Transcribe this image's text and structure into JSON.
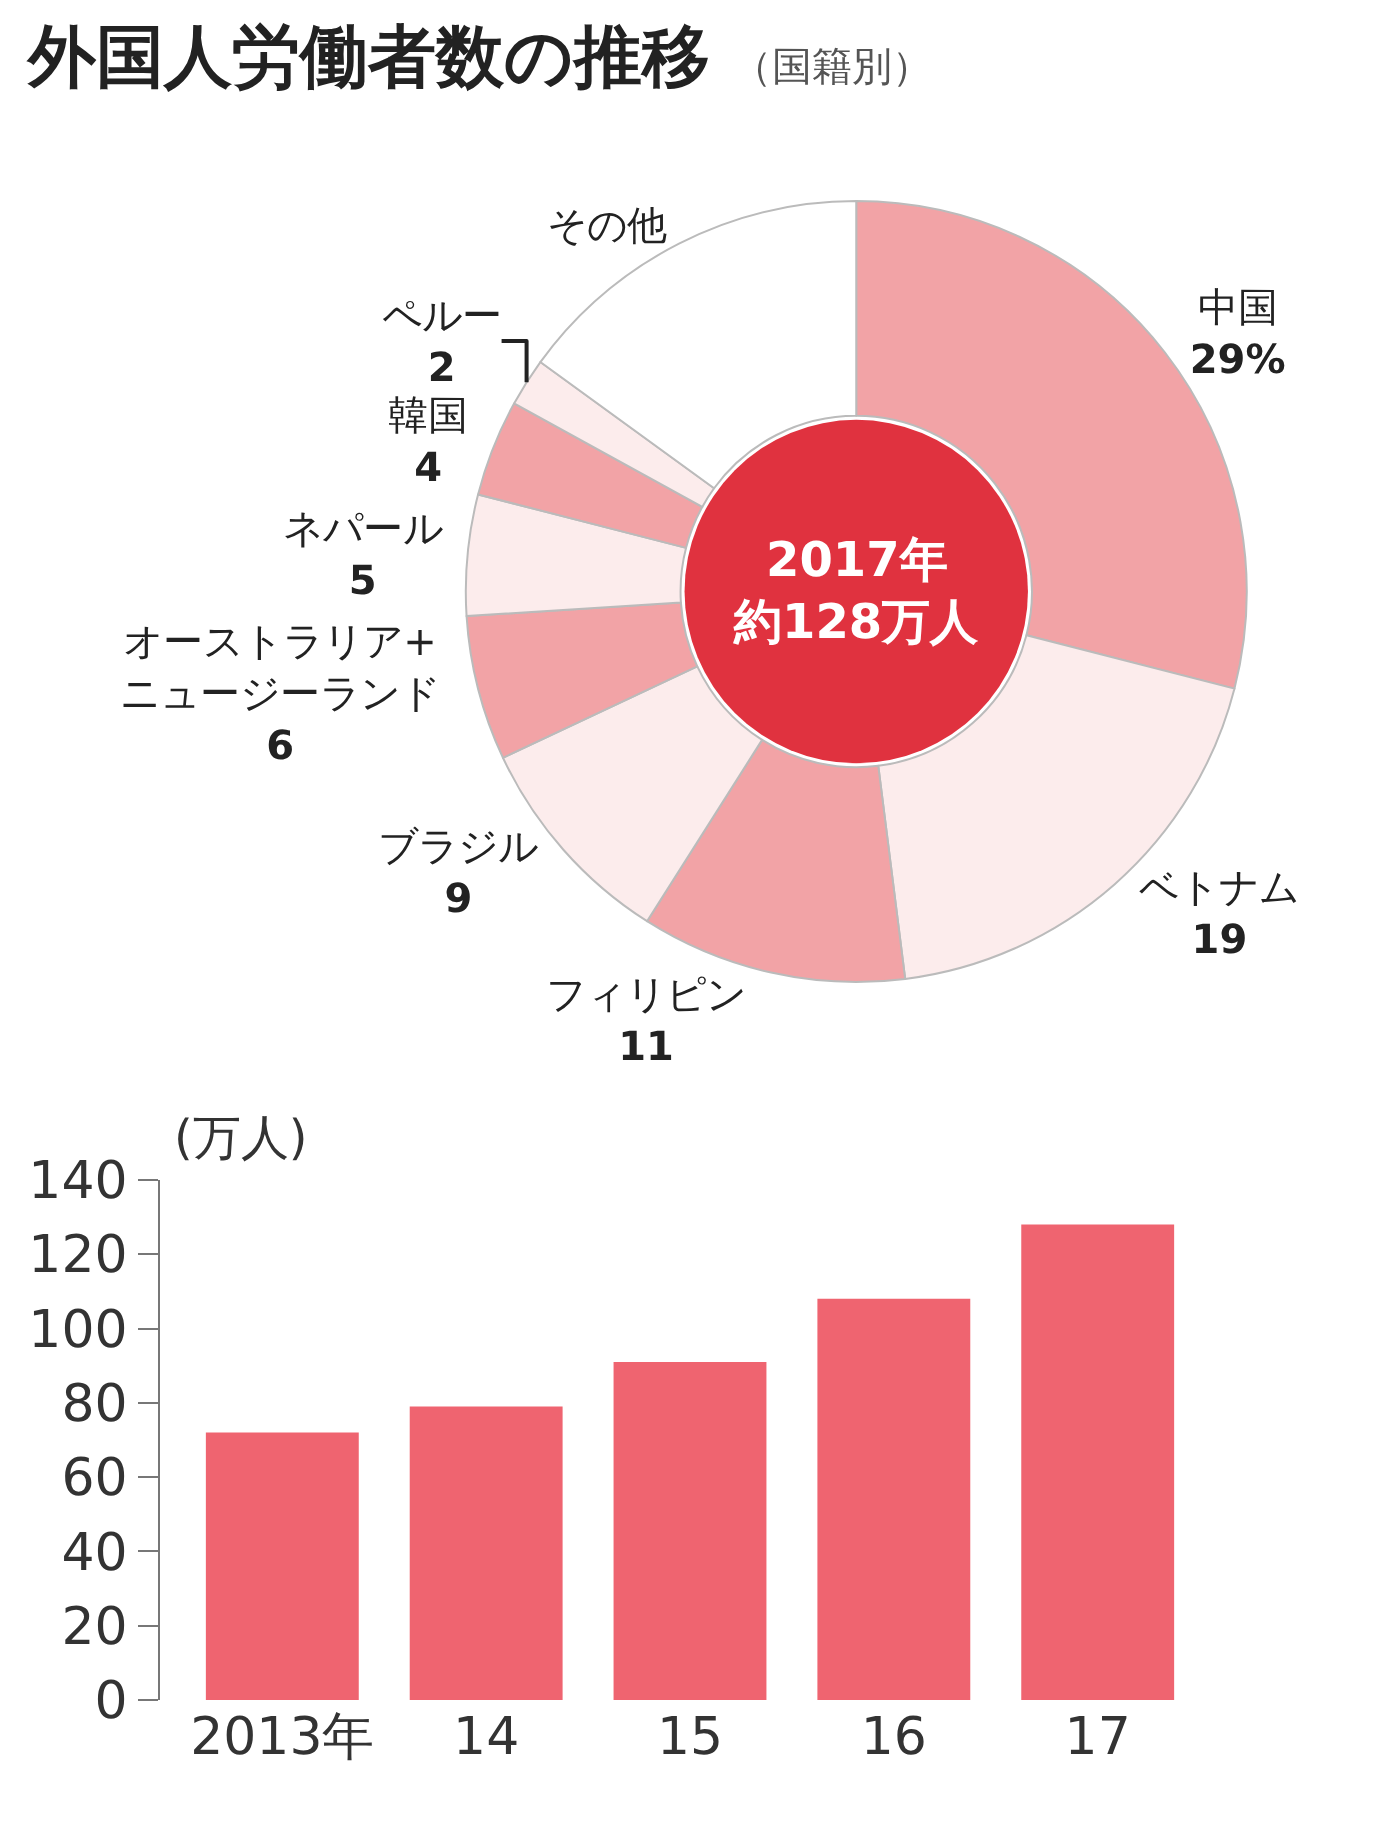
{
  "chart_data": [
    {
      "type": "donut",
      "title": "外国人労働者数の推移",
      "subtitle": "（国籍別）",
      "categories": [
        "中国",
        "ベトナム",
        "フィリピン",
        "ブラジル",
        "オーストラリア+\nニュージーランド",
        "ネパール",
        "韓国",
        "ペルー",
        "その他"
      ],
      "values": [
        29,
        19,
        11,
        9,
        6,
        5,
        4,
        2,
        15
      ],
      "value_labels": [
        "29%",
        "19",
        "11",
        "9",
        "6",
        "5",
        "4",
        "2",
        null
      ],
      "colors": [
        "#f2a3a6",
        "#fcecec",
        "#f2a3a6",
        "#fcecec",
        "#f2a3a6",
        "#fcecec",
        "#f2a3a6",
        "#fcecec",
        "#ffffff"
      ],
      "annotations": [
        "2017年",
        "約128万人"
      ]
    },
    {
      "type": "bar",
      "ylabel": "(万人)",
      "categories": [
        "2013年",
        "14",
        "15",
        "16",
        "17"
      ],
      "values": [
        72,
        79,
        91,
        108,
        128
      ],
      "color": "#ef6470",
      "ylim": [
        0,
        140
      ],
      "yticks": [
        0,
        20,
        40,
        60,
        80,
        100,
        120,
        140
      ],
      "grid": false
    }
  ]
}
